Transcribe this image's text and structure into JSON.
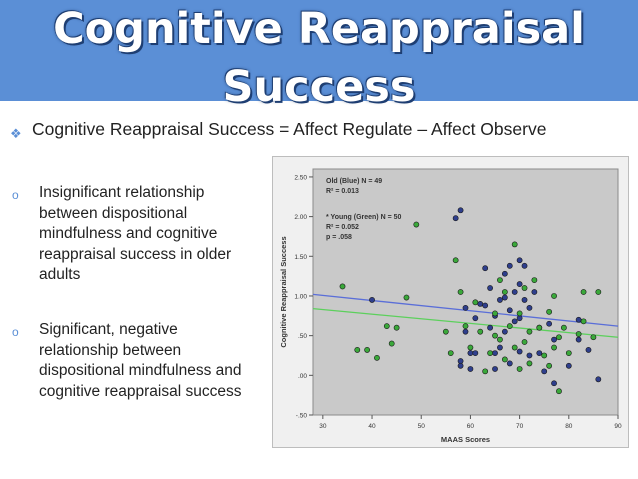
{
  "slide": {
    "title_line1": "Cognitive Reappraisal",
    "title_line2": "Success",
    "bullet_main": "Cognitive Reappraisal Success = Affect Regulate – Affect Observe",
    "bullet_symbol": "\u0000",
    "sub_bullets": [
      "Insignificant relationship between dispositional mindfulness and cognitive reappraisal success in older adults",
      "Significant, negative relationship between dispositional mindfulness and cognitive reappraisal success"
    ],
    "sub_bullet_symbol": "o"
  },
  "colors": {
    "title_band": "#5b8fd6",
    "old_series": "#2e3e8c",
    "young_series": "#3aa83a",
    "plot_bg": "#c9c9c9"
  },
  "chart_data": {
    "type": "scatter",
    "xlabel": "MAAS Scores",
    "ylabel": "Cognitive Reappraisal Success",
    "xlim": [
      28,
      90
    ],
    "ylim": [
      -0.5,
      2.6
    ],
    "xticks": [
      30,
      40,
      50,
      60,
      70,
      80,
      90
    ],
    "yticks": [
      -0.5,
      0,
      0.5,
      1.0,
      1.5,
      2.0,
      2.5
    ],
    "ytick_labels": [
      "-.50",
      ".00",
      ".50",
      "1.00",
      "1.50",
      "2.00",
      "2.50"
    ],
    "annotation_old": [
      "Old (Blue) N = 49",
      "R² = 0.013"
    ],
    "annotation_young": [
      "* Young (Green) N = 50",
      "R² = 0.052",
      "p = .058"
    ],
    "series": [
      {
        "color": "old",
        "points": [
          [
            40,
            0.95
          ],
          [
            57,
            1.98
          ],
          [
            58,
            2.08
          ],
          [
            58,
            0.18
          ],
          [
            58,
            0.12
          ],
          [
            59,
            0.85
          ],
          [
            59,
            0.55
          ],
          [
            60,
            0.28
          ],
          [
            60,
            0.08
          ],
          [
            61,
            0.72
          ],
          [
            61,
            0.28
          ],
          [
            62,
            0.9
          ],
          [
            63,
            1.35
          ],
          [
            63,
            0.88
          ],
          [
            64,
            1.1
          ],
          [
            64,
            0.6
          ],
          [
            65,
            0.75
          ],
          [
            65,
            0.28
          ],
          [
            65,
            0.08
          ],
          [
            66,
            0.95
          ],
          [
            66,
            0.35
          ],
          [
            67,
            1.28
          ],
          [
            67,
            0.98
          ],
          [
            67,
            0.55
          ],
          [
            68,
            1.38
          ],
          [
            68,
            0.82
          ],
          [
            68,
            0.15
          ],
          [
            69,
            1.05
          ],
          [
            69,
            0.68
          ],
          [
            70,
            1.45
          ],
          [
            70,
            1.15
          ],
          [
            70,
            0.72
          ],
          [
            70,
            0.3
          ],
          [
            71,
            1.38
          ],
          [
            71,
            0.95
          ],
          [
            72,
            0.85
          ],
          [
            72,
            0.25
          ],
          [
            73,
            1.05
          ],
          [
            74,
            0.6
          ],
          [
            74,
            0.28
          ],
          [
            75,
            0.05
          ],
          [
            76,
            0.65
          ],
          [
            77,
            0.45
          ],
          [
            77,
            -0.1
          ],
          [
            80,
            0.12
          ],
          [
            82,
            0.7
          ],
          [
            82,
            0.45
          ],
          [
            84,
            0.32
          ],
          [
            86,
            -0.05
          ]
        ]
      },
      {
        "color": "young",
        "points": [
          [
            34,
            1.12
          ],
          [
            37,
            0.32
          ],
          [
            39,
            0.32
          ],
          [
            41,
            0.22
          ],
          [
            43,
            0.62
          ],
          [
            44,
            0.4
          ],
          [
            45,
            0.6
          ],
          [
            47,
            0.98
          ],
          [
            49,
            1.9
          ],
          [
            55,
            0.55
          ],
          [
            56,
            0.28
          ],
          [
            57,
            1.45
          ],
          [
            58,
            1.05
          ],
          [
            59,
            0.62
          ],
          [
            60,
            0.35
          ],
          [
            61,
            0.92
          ],
          [
            62,
            0.55
          ],
          [
            63,
            0.05
          ],
          [
            64,
            0.28
          ],
          [
            65,
            0.5
          ],
          [
            65,
            0.78
          ],
          [
            66,
            1.2
          ],
          [
            66,
            0.45
          ],
          [
            67,
            1.05
          ],
          [
            67,
            0.2
          ],
          [
            68,
            0.62
          ],
          [
            69,
            1.65
          ],
          [
            69,
            0.35
          ],
          [
            70,
            0.78
          ],
          [
            70,
            0.08
          ],
          [
            71,
            1.1
          ],
          [
            71,
            0.42
          ],
          [
            72,
            0.55
          ],
          [
            72,
            0.15
          ],
          [
            73,
            1.2
          ],
          [
            74,
            0.6
          ],
          [
            75,
            0.25
          ],
          [
            76,
            0.8
          ],
          [
            76,
            0.12
          ],
          [
            77,
            1.0
          ],
          [
            77,
            0.35
          ],
          [
            78,
            0.48
          ],
          [
            78,
            -0.2
          ],
          [
            79,
            0.6
          ],
          [
            80,
            0.28
          ],
          [
            82,
            0.52
          ],
          [
            83,
            0.68
          ],
          [
            85,
            0.48
          ],
          [
            86,
            1.05
          ],
          [
            83,
            1.05
          ]
        ]
      }
    ],
    "fit_lines": [
      {
        "color": "old",
        "x": [
          28,
          90
        ],
        "y": [
          1.02,
          0.62
        ]
      },
      {
        "color": "young",
        "x": [
          28,
          90
        ],
        "y": [
          0.84,
          0.48
        ]
      }
    ]
  }
}
